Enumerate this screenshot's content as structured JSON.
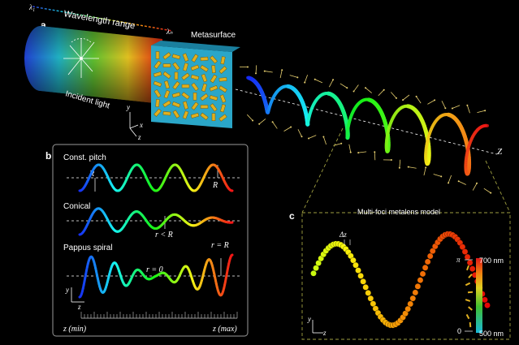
{
  "panel_a": {
    "letter": "a",
    "wavelength_range": "Wavelength range",
    "lambda_1": "λ₁",
    "lambda_n": "λₙ",
    "metasurface": "Metasurface",
    "incident_light": "Incident light",
    "axis_x": "x",
    "axis_y": "y",
    "axis_z": "z",
    "propagation_axis": "Z"
  },
  "panel_b": {
    "letter": "b",
    "const_pitch": "Const. pitch",
    "r_label": "R",
    "conical": "Conical",
    "r_less": "r < R",
    "pappus": "Pappus spiral",
    "r_zero": "r = 0",
    "r_equal": "r = R",
    "axis_y": "y",
    "axis_z": "z",
    "z_min": "z (min)",
    "z_max": "z (max)"
  },
  "panel_c": {
    "letter": "c",
    "title": "Multi-foci metalens model",
    "delta_z": "Δz",
    "pi": "π",
    "zero": "0",
    "nm_700": "700 nm",
    "nm_500": "500 nm",
    "axis_y": "y",
    "axis_z": "z"
  },
  "colors": {
    "background": "#000000",
    "metasurface": "#2aa6c8",
    "nanofins": "#e0b020",
    "panel_border": "#888888",
    "dashed_frame": "#a0a040",
    "arrows": "#e8d070"
  }
}
